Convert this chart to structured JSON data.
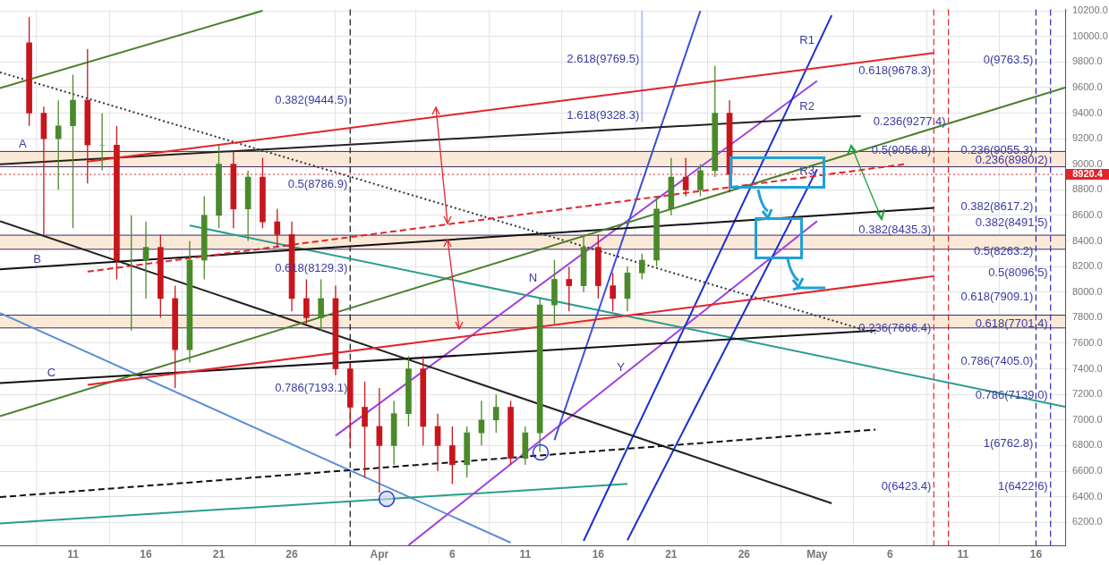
{
  "chart_data": {
    "type": "candlestick",
    "x": [
      "--03-08",
      "--03-09",
      "--03-10",
      "--03-11",
      "--03-12",
      "--03-13",
      "--03-14",
      "--03-15",
      "--03-16",
      "--03-17",
      "--03-18",
      "--03-19",
      "--03-20",
      "--03-21",
      "--03-22",
      "--03-23",
      "--03-24",
      "--03-25",
      "--03-26",
      "--03-27",
      "--03-28",
      "--03-29",
      "--03-30",
      "--03-31",
      "--04-01",
      "--04-02",
      "--04-03",
      "--04-04",
      "--04-05",
      "--04-06",
      "--04-07",
      "--04-08",
      "--04-09",
      "--04-10",
      "--04-11",
      "--04-12",
      "--04-13",
      "--04-14",
      "--04-15",
      "--04-16",
      "--04-17",
      "--04-18",
      "--04-19",
      "--04-20",
      "--04-21",
      "--04-22",
      "--04-23",
      "--04-24",
      "--04-25"
    ],
    "ohlc": [
      [
        9950,
        10150,
        9300,
        9400
      ],
      [
        9400,
        9450,
        8450,
        9200
      ],
      [
        9200,
        9500,
        8800,
        9300
      ],
      [
        9300,
        9700,
        8500,
        9500
      ],
      [
        9500,
        9900,
        8850,
        9150
      ],
      [
        9150,
        9400,
        8950,
        9150
      ],
      [
        9150,
        9300,
        8100,
        8250
      ],
      [
        8250,
        8600,
        7700,
        8250
      ],
      [
        8250,
        8550,
        7950,
        8350
      ],
      [
        8350,
        8450,
        7800,
        7950
      ],
      [
        7950,
        8050,
        7250,
        7550
      ],
      [
        7550,
        8400,
        7450,
        8250
      ],
      [
        8250,
        8750,
        8100,
        8600
      ],
      [
        8600,
        9150,
        8500,
        9000
      ],
      [
        9000,
        9100,
        8500,
        8650
      ],
      [
        8650,
        8950,
        8400,
        8900
      ],
      [
        8900,
        9050,
        8500,
        8550
      ],
      [
        8550,
        8650,
        8350,
        8450
      ],
      [
        8450,
        8550,
        7850,
        7950
      ],
      [
        7950,
        8100,
        7750,
        7800
      ],
      [
        7800,
        8100,
        7700,
        7950
      ],
      [
        7950,
        8050,
        7350,
        7400
      ],
      [
        7400,
        7450,
        6800,
        7100
      ],
      [
        7100,
        7300,
        6550,
        6950
      ],
      [
        6950,
        7250,
        6430,
        6800
      ],
      [
        6800,
        7150,
        6650,
        7050
      ],
      [
        7050,
        7500,
        6950,
        7400
      ],
      [
        7400,
        7500,
        6800,
        6950
      ],
      [
        6950,
        7050,
        6600,
        6800
      ],
      [
        6800,
        6950,
        6500,
        6650
      ],
      [
        6650,
        6950,
        6550,
        6900
      ],
      [
        6900,
        7150,
        6800,
        7000
      ],
      [
        7000,
        7200,
        6900,
        7100
      ],
      [
        7100,
        7150,
        6650,
        6700
      ],
      [
        6700,
        6950,
        6650,
        6900
      ],
      [
        6900,
        7950,
        6750,
        7900
      ],
      [
        7900,
        8250,
        7750,
        8100
      ],
      [
        8100,
        8200,
        7850,
        8050
      ],
      [
        8050,
        8450,
        8000,
        8350
      ],
      [
        8350,
        8450,
        7950,
        8050
      ],
      [
        8050,
        8150,
        7850,
        7950
      ],
      [
        7950,
        8200,
        7850,
        8150
      ],
      [
        8150,
        8300,
        8100,
        8250
      ],
      [
        8250,
        8750,
        8200,
        8650
      ],
      [
        8650,
        9050,
        8600,
        8900
      ],
      [
        8900,
        9050,
        8750,
        8800
      ],
      [
        8800,
        9000,
        8750,
        8950
      ],
      [
        8950,
        9770,
        8900,
        9400
      ],
      [
        9400,
        9500,
        8780,
        8920.4
      ]
    ],
    "series": [
      {
        "type": "line",
        "x": [
          "--03-12",
          "--05-09"
        ],
        "values": [
          9020,
          9870
        ],
        "color": "#e3242b",
        "line_style": "solid"
      },
      {
        "type": "line",
        "x": [
          "--03-12",
          "--05-07"
        ],
        "values": [
          8160,
          9000
        ],
        "color": "#e3242b",
        "line_style": "dashed"
      },
      {
        "type": "line",
        "x": [
          "--03-12",
          "--05-09"
        ],
        "values": [
          7275,
          8125
        ],
        "color": "#e3242b",
        "line_style": "solid"
      },
      {
        "type": "line",
        "x": [
          "--03-06",
          "--05-18"
        ],
        "values": [
          7030,
          9600
        ],
        "color": "#4a7f2c",
        "line_style": "solid"
      },
      {
        "type": "line",
        "x": [
          "--03-06",
          "--03-24"
        ],
        "values": [
          9596,
          10200
        ],
        "color": "#4a7f2c",
        "line_style": "solid"
      },
      {
        "type": "line",
        "x": [
          "--03-06",
          "--05-04"
        ],
        "values": [
          9000,
          9377
        ],
        "color": "#222222",
        "line_style": "solid"
      },
      {
        "type": "line",
        "x": [
          "--03-06",
          "--05-09"
        ],
        "values": [
          8178,
          8658
        ],
        "color": "#111111",
        "line_style": "solid"
      },
      {
        "type": "line",
        "x": [
          "--03-06",
          "--05-05"
        ],
        "values": [
          7288,
          7700
        ],
        "color": "#111111",
        "line_style": "solid"
      },
      {
        "type": "line",
        "x": [
          "--03-06",
          "--05-05"
        ],
        "values": [
          6397,
          6925
        ],
        "color": "#111111",
        "line_style": "dashed"
      },
      {
        "type": "line",
        "x": [
          "--03-06",
          "--05-02"
        ],
        "values": [
          8555,
          6349
        ],
        "color": "#222222",
        "line_style": "solid"
      },
      {
        "type": "line",
        "x": [
          "--03-06",
          "--05-05"
        ],
        "values": [
          9719,
          7678
        ],
        "color": "#333333",
        "line_style": "dotted"
      },
      {
        "type": "line",
        "x": [
          "--04-15",
          "--05-02"
        ],
        "values": [
          6055,
          10164
        ],
        "color": "#1a2fd0",
        "line_style": "solid"
      },
      {
        "type": "line",
        "x": [
          "--04-18",
          "--05-01"
        ],
        "values": [
          6060,
          8960
        ],
        "color": "#1a2fd0",
        "line_style": "solid"
      },
      {
        "type": "line",
        "x": [
          "--04-13",
          "--04-23"
        ],
        "values": [
          6843,
          10200
        ],
        "color": "#3a4fd8",
        "line_style": "solid"
      },
      {
        "type": "line",
        "x": [
          "--03-29",
          "--05-01"
        ],
        "values": [
          6877,
          9651
        ],
        "color": "#a040e0",
        "line_style": "solid"
      },
      {
        "type": "line",
        "x": [
          "--04-03",
          "--05-01"
        ],
        "values": [
          6021,
          8555
        ],
        "color": "#a040e0",
        "line_style": "solid"
      },
      {
        "type": "line",
        "x": [
          "--03-19",
          "--05-18"
        ],
        "values": [
          8521,
          7103
        ],
        "color": "#2a9d8f",
        "line_style": "solid"
      },
      {
        "type": "line",
        "x": [
          "--03-06",
          "--04-18"
        ],
        "values": [
          6192,
          6500
        ],
        "color": "#2a9d8f",
        "line_style": "solid"
      },
      {
        "type": "line",
        "x": [
          "--03-06",
          "--04-10"
        ],
        "values": [
          7836,
          6041
        ],
        "color": "#5b8fd6",
        "line_style": "solid"
      },
      {
        "type": "line",
        "x": [
          "--04-19",
          "--04-19"
        ],
        "values": [
          9330,
          10200
        ],
        "color": "#b8c0f4",
        "line_style": "solid"
      }
    ],
    "bands": [
      {
        "axis": "y",
        "from": 8980,
        "to": 9100,
        "color": "#fbe9d7"
      },
      {
        "axis": "y",
        "from": 8335,
        "to": 8445,
        "color": "#fbe9d7"
      },
      {
        "axis": "y",
        "from": 7720,
        "to": 7820,
        "color": "#fbe9d7"
      }
    ],
    "ref_lines": [
      {
        "axis": "y",
        "value": 8920.4,
        "label": "8920.4",
        "color": "#e3242b",
        "line_style": "dotted"
      },
      {
        "axis": "y",
        "value": 9100,
        "color": "#3b2b6b",
        "line_style": "solid"
      },
      {
        "axis": "y",
        "value": 8980,
        "color": "#3b2b6b",
        "line_style": "solid"
      },
      {
        "axis": "y",
        "value": 8445,
        "color": "#3b2b6b",
        "line_style": "solid"
      },
      {
        "axis": "y",
        "value": 8335,
        "color": "#3b2b6b",
        "line_style": "solid"
      },
      {
        "axis": "y",
        "value": 7820,
        "color": "#3b2b6b",
        "line_style": "solid"
      },
      {
        "axis": "y",
        "value": 7720,
        "color": "#3b2b6b",
        "line_style": "solid"
      },
      {
        "axis": "x",
        "value": "--03-30",
        "color": "#111111",
        "line_style": "dashed"
      },
      {
        "axis": "x",
        "value": "--05-09",
        "color": "#e3242b",
        "line_style": "dashed"
      },
      {
        "axis": "x",
        "value": "--05-10",
        "color": "#e3242b",
        "line_style": "dashed"
      },
      {
        "axis": "x",
        "value": "--05-16",
        "color": "#2a2ac0",
        "line_style": "dashed"
      },
      {
        "axis": "x",
        "value": "--05-17",
        "color": "#2a2ac0",
        "line_style": "dashed"
      }
    ],
    "annotations": [
      {
        "text": "0.382(9444.5)",
        "x": "--03-30",
        "y": 9444.5
      },
      {
        "text": "0.5(8786.9)",
        "x": "--03-30",
        "y": 8786.9
      },
      {
        "text": "0.618(8129.3)",
        "x": "--03-30",
        "y": 8129.3
      },
      {
        "text": "0.786(7193.1)",
        "x": "--03-30",
        "y": 7193.1
      },
      {
        "text": "2.618(9769.5)",
        "x": "--04-19",
        "y": 9769.5
      },
      {
        "text": "1.618(9328.3)",
        "x": "--04-19",
        "y": 9328.3
      },
      {
        "text": "0.618(9678.3)",
        "x": "--05-09",
        "y": 9678.3
      },
      {
        "text": "0.236(9277.4)",
        "x": "--05-10",
        "y": 9277.4
      },
      {
        "text": "0.5(9056.8)",
        "x": "--05-09",
        "y": 9056.8
      },
      {
        "text": "0.382(8435.3)",
        "x": "--05-09",
        "y": 8435.3
      },
      {
        "text": "0.236(7666.4)",
        "x": "--05-09",
        "y": 7666.4
      },
      {
        "text": "0(6423.4)",
        "x": "--05-09",
        "y": 6423.4
      },
      {
        "text": "0(9763.5)",
        "x": "--05-16",
        "y": 9763.5
      },
      {
        "text": "0.236(9055.3)",
        "x": "--05-16",
        "y": 9055.3
      },
      {
        "text": "0.382(8617.2)",
        "x": "--05-16",
        "y": 8617.2
      },
      {
        "text": "0.5(8263.2)",
        "x": "--05-16",
        "y": 8263.2
      },
      {
        "text": "0.618(7909.1)",
        "x": "--05-16",
        "y": 7909.1
      },
      {
        "text": "0.786(7405.0)",
        "x": "--05-16",
        "y": 7405.0
      },
      {
        "text": "1(6762.8)",
        "x": "--05-16",
        "y": 6762.8
      },
      {
        "text": "0.236(8980.2)",
        "x": "--05-17",
        "y": 8980.2
      },
      {
        "text": "0.382(8491.5)",
        "x": "--05-17",
        "y": 8491.5
      },
      {
        "text": "0.5(8096.5)",
        "x": "--05-17",
        "y": 8096.5
      },
      {
        "text": "0.618(7701.4)",
        "x": "--05-17",
        "y": 7701.4
      },
      {
        "text": "0.786(7139.0)",
        "x": "--05-17",
        "y": 7139.0
      },
      {
        "text": "1(6422.6)",
        "x": "--05-17",
        "y": 6422.6
      },
      {
        "text": "A",
        "x": "--03-08",
        "y": 9103
      },
      {
        "text": "B",
        "x": "--03-09",
        "y": 8200
      },
      {
        "text": "C",
        "x": "--03-10",
        "y": 7315
      },
      {
        "text": "N",
        "x": "--04-12",
        "y": 8054
      },
      {
        "text": "Y",
        "x": "--04-18",
        "y": 7356
      },
      {
        "text": "R1",
        "x": "--05-01",
        "y": 9911
      },
      {
        "text": "R2",
        "x": "--05-01",
        "y": 9397
      },
      {
        "text": "R3",
        "x": "--05-01",
        "y": 8897
      }
    ],
    "xlim": [
      "--03-06",
      "--05-18"
    ],
    "xticks": [
      {
        "value": "--03-11",
        "label": "11"
      },
      {
        "value": "--03-16",
        "label": "16"
      },
      {
        "value": "--03-21",
        "label": "21"
      },
      {
        "value": "--03-26",
        "label": "26"
      },
      {
        "value": "--04-01",
        "label": "Apr"
      },
      {
        "value": "--04-06",
        "label": "6"
      },
      {
        "value": "--04-11",
        "label": "11"
      },
      {
        "value": "--04-16",
        "label": "16"
      },
      {
        "value": "--04-21",
        "label": "21"
      },
      {
        "value": "--04-26",
        "label": "26"
      },
      {
        "value": "--05-01",
        "label": "May"
      },
      {
        "value": "--05-06",
        "label": "6"
      },
      {
        "value": "--05-11",
        "label": "11"
      },
      {
        "value": "--05-16",
        "label": "16"
      }
    ],
    "ylim": [
      6020,
      10210
    ],
    "yticks": [
      {
        "value": 6200,
        "label": "6200.0"
      },
      {
        "value": 6400,
        "label": "6400.0"
      },
      {
        "value": 6600,
        "label": "6600.0"
      },
      {
        "value": 6800,
        "label": "6800.0"
      },
      {
        "value": 7000,
        "label": "7000.0"
      },
      {
        "value": 7200,
        "label": "7200.0"
      },
      {
        "value": 7400,
        "label": "7400.0"
      },
      {
        "value": 7600,
        "label": "7600.0"
      },
      {
        "value": 7800,
        "label": "7800.0"
      },
      {
        "value": 8000,
        "label": "8000.0"
      },
      {
        "value": 8200,
        "label": "8200.0"
      },
      {
        "value": 8400,
        "label": "8400.0"
      },
      {
        "value": 8600,
        "label": "8600.0"
      },
      {
        "value": 8800,
        "label": "8800.0"
      },
      {
        "value": 9000,
        "label": "9000.0"
      },
      {
        "value": 9200,
        "label": "9200.0"
      },
      {
        "value": 9400,
        "label": "9400.0"
      },
      {
        "value": 9600,
        "label": "9600.0"
      },
      {
        "value": 9800,
        "label": "9800.0"
      },
      {
        "value": 10000,
        "label": "10000.0"
      },
      {
        "value": 10200,
        "label": "10200.0"
      }
    ],
    "grid": true,
    "legend": false
  }
}
